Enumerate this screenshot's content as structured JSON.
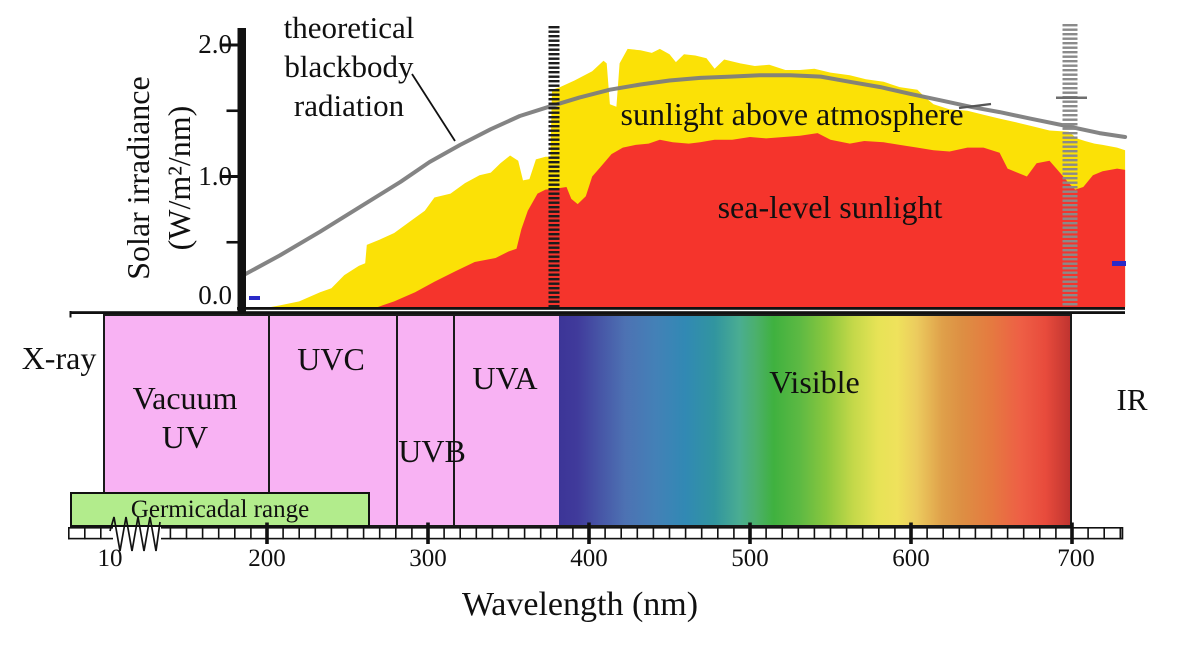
{
  "figure": {
    "labels": {
      "blackbody_lines": [
        "theoretical",
        "blackbody",
        "radiation"
      ],
      "sunlight_above": "sunlight above atmosphere",
      "sea_level": "sea-level sunlight",
      "y_axis_lines": [
        "Solar irradiance",
        "(W/m²/nm)"
      ],
      "x_axis": "Wavelength (nm)",
      "x_ray": "X-ray",
      "vacuum_uv_lines": [
        "Vacuum",
        "UV"
      ],
      "uvc": "UVC",
      "uvb": "UVB",
      "uva": "UVA",
      "visible": "Visible",
      "ir": "IR",
      "germicidal": "Germicadal range"
    },
    "colors": {
      "uv_band": "#f8b2f3",
      "germicidal_fill": "#b2ec8c",
      "sunlight_above_fill": "#fbe106",
      "sea_level_fill": "#f5342c",
      "blackbody_line": "#7d7d7d",
      "marker_380": "#1c1c1c",
      "marker_700": "#8a8a8a",
      "blue_dash": "#2a2ac8",
      "axis": "#111111"
    },
    "visible_gradient_stops": [
      "#3c3597 0%",
      "#403a9b 3.5%",
      "#4757a7 8.3%",
      "#4d72b3 13%",
      "#4381b7 19%",
      "#3189b4 24.7%",
      "#31959f 30.5%",
      "#4aad92 35.3%",
      "#4bb069 38.8%",
      "#3fb13f 42%",
      "#5cb943 47%",
      "#8ac73e 52.3%",
      "#c3d849 57.5%",
      "#e7e356 62.4%",
      "#efe25c 66.2%",
      "#eccb5e 70%",
      "#dfa04a 75%",
      "#dd8f43 78.8%",
      "#e57a40 84.6%",
      "#ee5f45 90.3%",
      "#e84b3c 95.2%",
      "#c03430 100%"
    ]
  },
  "chart_data": {
    "type": "area",
    "title": "Solar irradiance spectrum above atmosphere and at sea level",
    "xlabel": "Wavelength (nm)",
    "ylabel": "Solar irradiance (W/m²/nm)",
    "xlim_nm": [
      10,
      733
    ],
    "ylim": [
      0,
      2.1
    ],
    "x_ticks": [
      "10",
      "200",
      "300",
      "400",
      "500",
      "600",
      "700"
    ],
    "y_ticks": [
      "0.0",
      "1.0",
      "2.0"
    ],
    "y_minor_ticks": [
      0.5,
      1.5
    ],
    "axis_break_before_nm": 200,
    "grid": false,
    "legend_position": "labels-inline",
    "visible_range_markers_nm": [
      380,
      700
    ],
    "bands": [
      {
        "label": "X-ray",
        "nm_min": null,
        "nm_max": 10
      },
      {
        "label": "Vacuum UV",
        "nm_min": 10,
        "nm_max": 200
      },
      {
        "label": "UVC",
        "nm_min": 200,
        "nm_max": 280
      },
      {
        "label": "UVB",
        "nm_min": 280,
        "nm_max": 315
      },
      {
        "label": "UVA",
        "nm_min": 315,
        "nm_max": 380
      },
      {
        "label": "Visible",
        "nm_min": 380,
        "nm_max": 700
      },
      {
        "label": "IR",
        "nm_min": 700,
        "nm_max": null
      },
      {
        "label": "Germicadal range",
        "nm_min": 10,
        "nm_max": 265
      }
    ],
    "series": [
      {
        "name": "theoretical blackbody radiation",
        "style": "line",
        "points": [
          [
            184,
            0.24
          ],
          [
            208,
            0.4
          ],
          [
            233,
            0.58
          ],
          [
            258,
            0.77
          ],
          [
            283,
            0.96
          ],
          [
            301,
            1.11
          ],
          [
            320,
            1.24
          ],
          [
            339,
            1.36
          ],
          [
            357,
            1.46
          ],
          [
            375,
            1.53
          ],
          [
            394,
            1.6
          ],
          [
            413,
            1.66
          ],
          [
            432,
            1.7
          ],
          [
            450,
            1.73
          ],
          [
            469,
            1.75
          ],
          [
            488,
            1.76
          ],
          [
            506,
            1.77
          ],
          [
            525,
            1.77
          ],
          [
            544,
            1.76
          ],
          [
            562,
            1.72
          ],
          [
            581,
            1.68
          ],
          [
            599,
            1.63
          ],
          [
            618,
            1.58
          ],
          [
            637,
            1.53
          ],
          [
            655,
            1.49
          ],
          [
            674,
            1.44
          ],
          [
            698,
            1.38
          ],
          [
            717,
            1.33
          ],
          [
            733,
            1.3
          ]
        ]
      },
      {
        "name": "sunlight above atmosphere",
        "style": "area",
        "points": [
          [
            199,
            0.0
          ],
          [
            208,
            0.02
          ],
          [
            220,
            0.05
          ],
          [
            233,
            0.12
          ],
          [
            240,
            0.15
          ],
          [
            248,
            0.25
          ],
          [
            257,
            0.32
          ],
          [
            261,
            0.34
          ],
          [
            262,
            0.48
          ],
          [
            270,
            0.52
          ],
          [
            279,
            0.57
          ],
          [
            289,
            0.66
          ],
          [
            298,
            0.74
          ],
          [
            304,
            0.84
          ],
          [
            314,
            0.87
          ],
          [
            323,
            0.95
          ],
          [
            332,
            1.01
          ],
          [
            339,
            1.03
          ],
          [
            345,
            1.1
          ],
          [
            351,
            1.16
          ],
          [
            356,
            1.12
          ],
          [
            359,
            0.97
          ],
          [
            363,
            0.98
          ],
          [
            367,
            1.13
          ],
          [
            373,
            1.15
          ],
          [
            376,
            1.15
          ],
          [
            377,
            1.66
          ],
          [
            382,
            1.68
          ],
          [
            391,
            1.73
          ],
          [
            402,
            1.8
          ],
          [
            409,
            1.88
          ],
          [
            411,
            1.86
          ],
          [
            413,
            1.55
          ],
          [
            417,
            1.53
          ],
          [
            419,
            1.86
          ],
          [
            424,
            1.97
          ],
          [
            432,
            1.96
          ],
          [
            439,
            1.94
          ],
          [
            444,
            1.97
          ],
          [
            450,
            1.93
          ],
          [
            454,
            1.87
          ],
          [
            459,
            1.93
          ],
          [
            466,
            1.92
          ],
          [
            473,
            1.9
          ],
          [
            478,
            1.82
          ],
          [
            484,
            1.89
          ],
          [
            494,
            1.86
          ],
          [
            503,
            1.84
          ],
          [
            512,
            1.85
          ],
          [
            522,
            1.81
          ],
          [
            531,
            1.81
          ],
          [
            540,
            1.82
          ],
          [
            550,
            1.79
          ],
          [
            562,
            1.77
          ],
          [
            572,
            1.74
          ],
          [
            583,
            1.72
          ],
          [
            593,
            1.68
          ],
          [
            604,
            1.66
          ],
          [
            609,
            1.6
          ],
          [
            614,
            1.55
          ],
          [
            624,
            1.51
          ],
          [
            635,
            1.5
          ],
          [
            645,
            1.47
          ],
          [
            655,
            1.44
          ],
          [
            666,
            1.41
          ],
          [
            676,
            1.38
          ],
          [
            686,
            1.35
          ],
          [
            698,
            1.34
          ],
          [
            703,
            1.29
          ],
          [
            708,
            1.27
          ],
          [
            714,
            1.25
          ],
          [
            719,
            1.24
          ],
          [
            728,
            1.22
          ],
          [
            733,
            1.2
          ]
        ]
      },
      {
        "name": "sea-level sunlight",
        "style": "area",
        "points": [
          [
            267,
            0.0
          ],
          [
            279,
            0.05
          ],
          [
            292,
            0.12
          ],
          [
            304,
            0.2
          ],
          [
            317,
            0.28
          ],
          [
            329,
            0.35
          ],
          [
            342,
            0.38
          ],
          [
            350,
            0.43
          ],
          [
            355,
            0.45
          ],
          [
            358,
            0.6
          ],
          [
            362,
            0.74
          ],
          [
            368,
            0.87
          ],
          [
            373,
            0.9
          ],
          [
            381,
            0.91
          ],
          [
            386,
            0.92
          ],
          [
            389,
            0.83
          ],
          [
            393,
            0.79
          ],
          [
            398,
            0.85
          ],
          [
            402,
            1.0
          ],
          [
            407,
            1.07
          ],
          [
            414,
            1.17
          ],
          [
            421,
            1.22
          ],
          [
            429,
            1.24
          ],
          [
            437,
            1.25
          ],
          [
            444,
            1.28
          ],
          [
            452,
            1.26
          ],
          [
            462,
            1.25
          ],
          [
            469,
            1.26
          ],
          [
            478,
            1.28
          ],
          [
            489,
            1.28
          ],
          [
            500,
            1.3
          ],
          [
            510,
            1.29
          ],
          [
            521,
            1.3
          ],
          [
            531,
            1.31
          ],
          [
            542,
            1.33
          ],
          [
            550,
            1.28
          ],
          [
            562,
            1.25
          ],
          [
            571,
            1.27
          ],
          [
            583,
            1.26
          ],
          [
            593,
            1.24
          ],
          [
            604,
            1.22
          ],
          [
            614,
            1.2
          ],
          [
            624,
            1.19
          ],
          [
            635,
            1.22
          ],
          [
            645,
            1.22
          ],
          [
            655,
            1.18
          ],
          [
            660,
            1.06
          ],
          [
            666,
            1.03
          ],
          [
            672,
            1.0
          ],
          [
            678,
            1.1
          ],
          [
            686,
            1.12
          ],
          [
            691,
            1.05
          ],
          [
            698,
            0.95
          ],
          [
            702,
            0.9
          ],
          [
            707,
            0.92
          ],
          [
            713,
            1.01
          ],
          [
            719,
            1.04
          ],
          [
            728,
            1.06
          ],
          [
            733,
            1.05
          ]
        ]
      }
    ]
  }
}
